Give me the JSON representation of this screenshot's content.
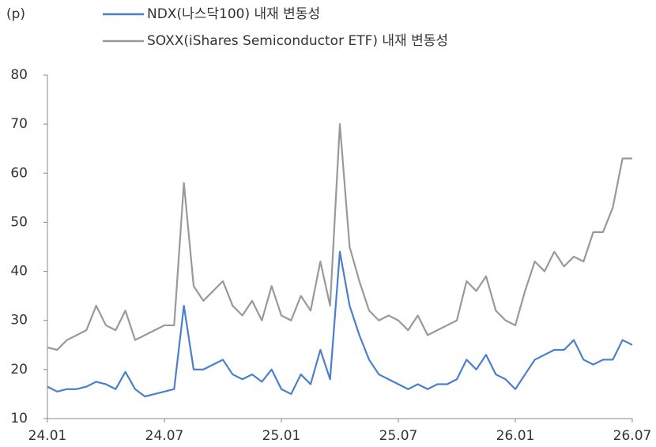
{
  "chart_data": {
    "type": "line",
    "y_unit_label": "(p)",
    "categories": [
      "24.01",
      null,
      null,
      null,
      null,
      null,
      null,
      null,
      null,
      null,
      null,
      null,
      "24.07",
      null,
      null,
      null,
      null,
      null,
      null,
      null,
      null,
      null,
      null,
      null,
      "25.01",
      null,
      null,
      null,
      null,
      null,
      null,
      null,
      null,
      null,
      null,
      null,
      "25.07",
      null,
      null,
      null,
      null,
      null,
      null,
      null,
      null,
      null,
      null,
      null,
      "26.01",
      null,
      null,
      null,
      null,
      null,
      null,
      null,
      null,
      null,
      null,
      null,
      "26.07"
    ],
    "series": [
      {
        "name": "NDX(나스닥100) 내재 변동성",
        "color": "#4a7fcc",
        "values": [
          16.5,
          15.5,
          16,
          16,
          16.5,
          17.5,
          17,
          16,
          19.5,
          16,
          14.5,
          15,
          15.5,
          16,
          33,
          20,
          20,
          21,
          22,
          19,
          18,
          19,
          17.5,
          20,
          16,
          15,
          19,
          17,
          24,
          18,
          44,
          33,
          27,
          22,
          19,
          18,
          17,
          16,
          17,
          16,
          17,
          17,
          18,
          22,
          20,
          23,
          19,
          18,
          16,
          19,
          22,
          23,
          24,
          24,
          26,
          22,
          21,
          22,
          22,
          26,
          25
        ]
      },
      {
        "name": "SOXX(iShares Semiconductor ETF) 내재 변동성",
        "color": "#999999",
        "values": [
          24.5,
          24,
          26,
          27,
          28,
          33,
          29,
          28,
          32,
          26,
          27,
          28,
          29,
          29,
          58,
          37,
          34,
          36,
          38,
          33,
          31,
          34,
          30,
          37,
          31,
          30,
          35,
          32,
          42,
          33,
          70,
          45,
          38,
          32,
          30,
          31,
          30,
          28,
          31,
          27,
          28,
          29,
          30,
          38,
          36,
          39,
          32,
          30,
          29,
          36,
          42,
          40,
          44,
          41,
          43,
          42,
          48,
          48,
          53,
          63,
          63
        ]
      }
    ],
    "ylim": [
      10,
      80
    ],
    "yticks": [
      10,
      20,
      30,
      40,
      50,
      60,
      70,
      80
    ]
  }
}
